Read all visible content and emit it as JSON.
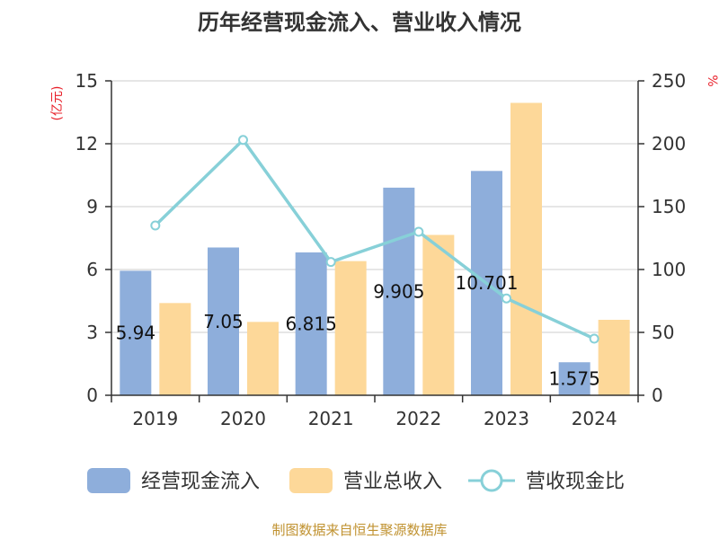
{
  "chart_data": {
    "type": "bar",
    "title": "历年经营现金流入、营业收入情况",
    "categories": [
      "2019",
      "2020",
      "2021",
      "2022",
      "2023",
      "2024"
    ],
    "series": [
      {
        "name": "经营现金流入",
        "kind": "bar",
        "axis": "left",
        "color": "#8eaedb",
        "values": [
          5.94,
          7.05,
          6.815,
          9.905,
          10.701,
          1.575
        ],
        "labels": [
          "5.94",
          "7.05",
          "6.815",
          "9.905",
          "10.701",
          "1.575"
        ]
      },
      {
        "name": "营业总收入",
        "kind": "bar",
        "axis": "left",
        "color": "#fdd899",
        "values": [
          4.4,
          3.5,
          6.4,
          7.65,
          13.95,
          3.6
        ]
      },
      {
        "name": "营收现金比",
        "kind": "line",
        "axis": "right",
        "color": "#87d0d8",
        "values": [
          135,
          203,
          106,
          130,
          77,
          45
        ]
      }
    ],
    "y_left": {
      "label": "(亿元)",
      "ylim": [
        0,
        15
      ],
      "ticks": [
        "0",
        "3",
        "6",
        "9",
        "12",
        "15"
      ]
    },
    "y_right": {
      "label": "%",
      "ylim": [
        0,
        250
      ],
      "ticks": [
        "0",
        "50",
        "100",
        "150",
        "200",
        "250"
      ]
    },
    "grid": true,
    "legend_position": "bottom",
    "source": "制图数据来自恒生聚源数据库"
  }
}
